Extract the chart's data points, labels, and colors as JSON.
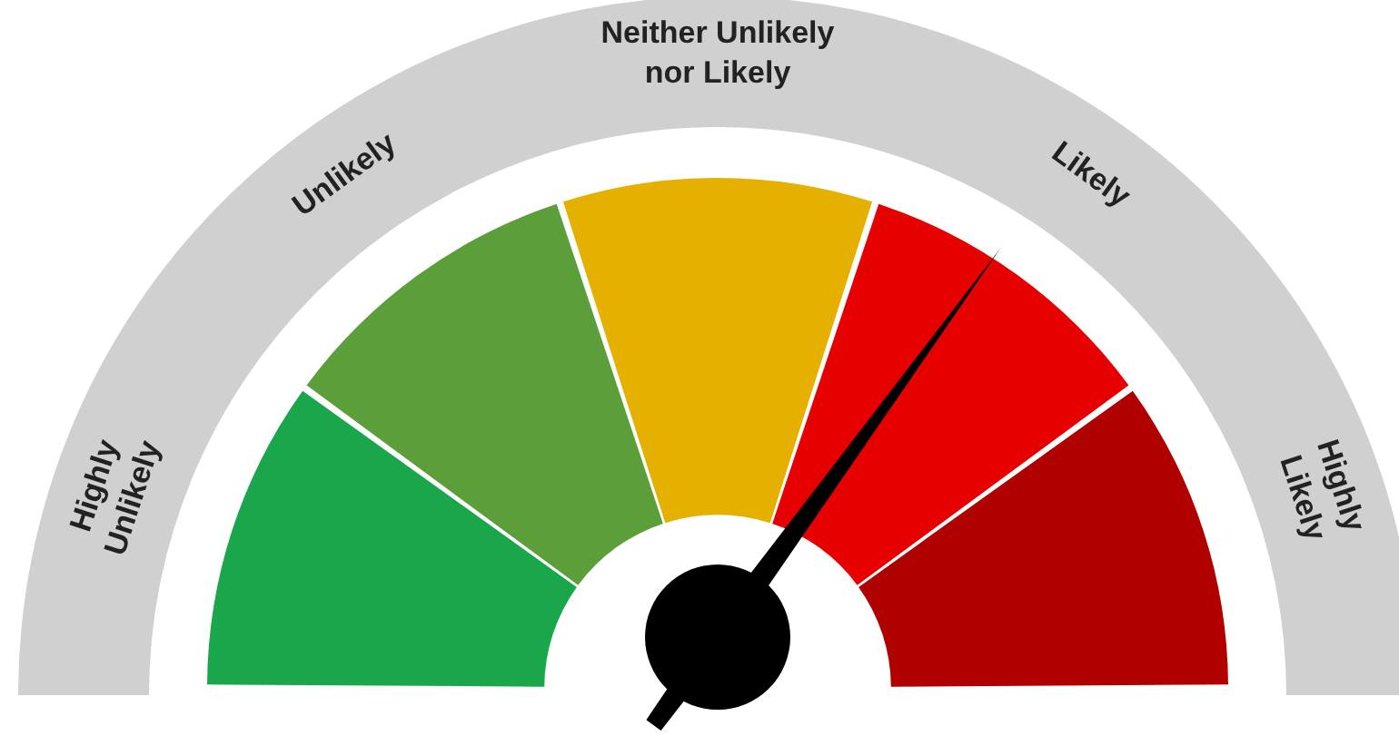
{
  "chart_data": {
    "type": "donut",
    "categories": [
      "Highly Unlikely",
      "Unlikely",
      "Neither Unlikely nor Likely",
      "Likely",
      "Highly Likely"
    ],
    "values": [
      20,
      20,
      20,
      20,
      20
    ],
    "colors": [
      "#1aa64a",
      "#5c9e3a",
      "#e6b000",
      "#e60000",
      "#b00000"
    ],
    "needle": "Likely"
  }
}
